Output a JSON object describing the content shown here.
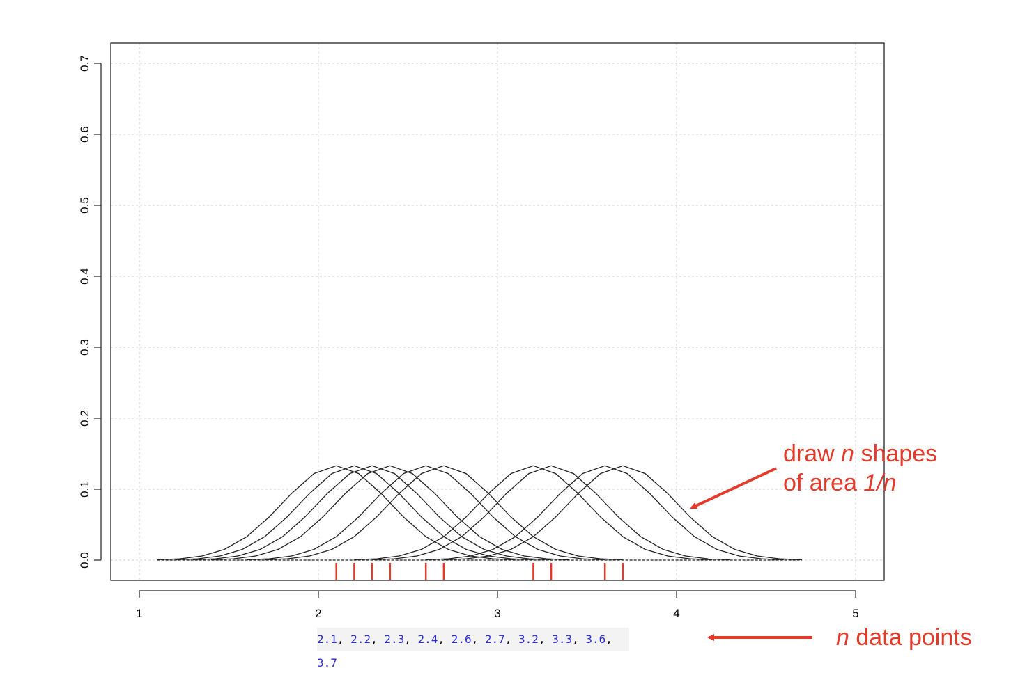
{
  "chart_data": {
    "type": "line",
    "title": "",
    "xlabel": "",
    "ylabel": "",
    "xlim": [
      1,
      5
    ],
    "ylim": [
      0,
      0.7
    ],
    "x_ticks": [
      "1",
      "2",
      "3",
      "4",
      "5"
    ],
    "y_ticks": [
      "0.0",
      "0.1",
      "0.2",
      "0.3",
      "0.4",
      "0.5",
      "0.6",
      "0.7"
    ],
    "grid": true,
    "data_points": [
      2.1,
      2.2,
      2.3,
      2.4,
      2.6,
      2.7,
      3.2,
      3.3,
      3.6,
      3.7
    ],
    "kernel": {
      "shape": "gaussian",
      "bandwidth": 0.3,
      "n": 10,
      "peak_value": 0.133
    },
    "rug_color": "#e53a2a",
    "curve_color": "#222222"
  },
  "annotations": {
    "shapes_line1_a": "draw ",
    "shapes_line1_n": "n",
    "shapes_line1_b": " shapes",
    "shapes_line2_a": "of area ",
    "shapes_line2_b": "1/n",
    "points_n": "n",
    "points_text": " data points"
  },
  "data_strip": {
    "values": [
      "2.1",
      "2.2",
      "2.3",
      "2.4",
      "2.6",
      "2.7",
      "3.2",
      "3.3",
      "3.6",
      "3.7"
    ],
    "separator": ", "
  }
}
